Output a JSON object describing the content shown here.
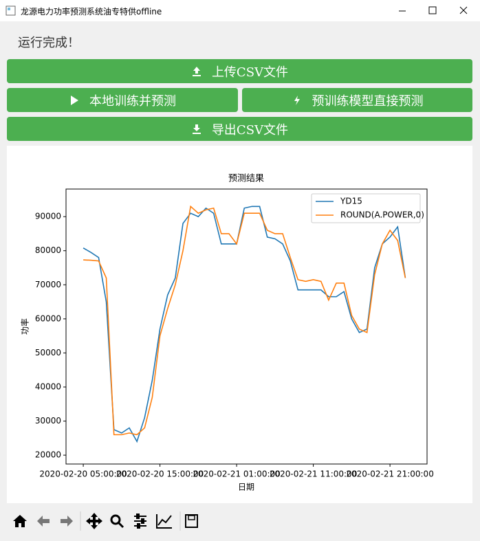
{
  "window": {
    "title": "龙源电力功率预测系统油专特供offline"
  },
  "status": "运行完成！",
  "buttons": [
    "上传CSV文件",
    "本地训练并预测",
    "预训练模型直接预测",
    "导出CSV文件"
  ],
  "chart_data": {
    "type": "line",
    "title": "预测结果",
    "x_label": "日期",
    "y_label": "功率",
    "x": [
      "2020-02-20 05:00:00",
      "2020-02-20 06:00:00",
      "2020-02-20 07:00:00",
      "2020-02-20 08:00:00",
      "2020-02-20 09:00:00",
      "2020-02-20 10:00:00",
      "2020-02-20 11:00:00",
      "2020-02-20 12:00:00",
      "2020-02-20 13:00:00",
      "2020-02-20 14:00:00",
      "2020-02-20 15:00:00",
      "2020-02-20 16:00:00",
      "2020-02-20 17:00:00",
      "2020-02-20 18:00:00",
      "2020-02-20 19:00:00",
      "2020-02-20 20:00:00",
      "2020-02-20 21:00:00",
      "2020-02-20 22:00:00",
      "2020-02-20 23:00:00",
      "2020-02-21 00:00:00",
      "2020-02-21 01:00:00",
      "2020-02-21 02:00:00",
      "2020-02-21 03:00:00",
      "2020-02-21 04:00:00",
      "2020-02-21 05:00:00",
      "2020-02-21 06:00:00",
      "2020-02-21 07:00:00",
      "2020-02-21 08:00:00",
      "2020-02-21 09:00:00",
      "2020-02-21 10:00:00",
      "2020-02-21 11:00:00",
      "2020-02-21 12:00:00",
      "2020-02-21 13:00:00",
      "2020-02-21 14:00:00",
      "2020-02-21 15:00:00",
      "2020-02-21 16:00:00",
      "2020-02-21 17:00:00",
      "2020-02-21 18:00:00",
      "2020-02-21 19:00:00",
      "2020-02-21 20:00:00",
      "2020-02-21 21:00:00",
      "2020-02-21 22:00:00",
      "2020-02-21 23:00:00"
    ],
    "series": [
      {
        "name": "YD15",
        "color": "#1f77b4",
        "values": [
          80800,
          79500,
          78000,
          65000,
          27500,
          26500,
          28000,
          24000,
          31000,
          42000,
          57000,
          67000,
          72000,
          88000,
          91000,
          90000,
          92500,
          91000,
          82000,
          82000,
          82000,
          92500,
          93000,
          93000,
          84000,
          83500,
          82000,
          77000,
          68500,
          68500,
          68500,
          68500,
          66500,
          66500,
          68000,
          60000,
          56000,
          57000,
          75000,
          82000,
          84000,
          87000,
          72000
        ]
      },
      {
        "name": "ROUND(A.POWER,0)",
        "color": "#ff7f0e",
        "values": [
          77300,
          77200,
          77000,
          72000,
          26000,
          26000,
          26500,
          26000,
          28000,
          37000,
          55000,
          63000,
          70000,
          80000,
          93000,
          91000,
          92000,
          92500,
          85000,
          85000,
          82000,
          91000,
          91000,
          91000,
          86000,
          85000,
          85000,
          78000,
          71500,
          71000,
          71500,
          71000,
          65500,
          70500,
          70500,
          61000,
          57000,
          56000,
          73000,
          82000,
          86000,
          83000,
          72000
        ]
      }
    ],
    "xlim": [
      "2020-02-20 02:45:00",
      "2020-02-22 01:50:00"
    ],
    "xticks": [
      "2020-02-20 05:00:00",
      "2020-02-20 15:00:00",
      "2020-02-21 01:00:00",
      "2020-02-21 11:00:00",
      "2020-02-21 21:00:00"
    ],
    "ylim": [
      17400,
      98100
    ],
    "yticks": [
      20000,
      30000,
      40000,
      50000,
      60000,
      70000,
      80000,
      90000
    ],
    "grid": false,
    "legend": "upper right"
  }
}
